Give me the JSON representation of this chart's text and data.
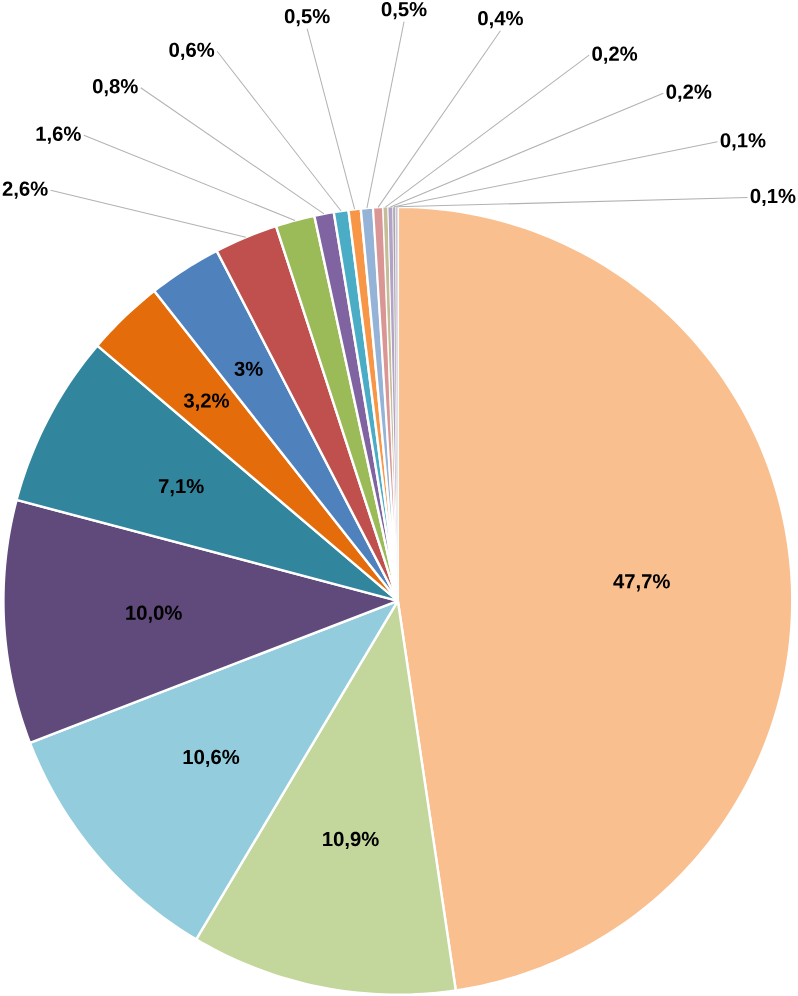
{
  "chart_data": {
    "type": "pie",
    "categories": [
      null,
      null,
      null,
      null,
      null,
      null,
      null,
      null,
      null,
      null,
      null,
      null,
      null,
      null,
      null,
      null,
      null,
      null
    ],
    "values": [
      47.7,
      10.9,
      10.6,
      10.0,
      7.1,
      3.2,
      3,
      2.6,
      1.6,
      0.8,
      0.6,
      0.5,
      0.5,
      0.4,
      0.2,
      0.2,
      0.1,
      0.1
    ],
    "value_labels": [
      "47,7%",
      "10,9%",
      "10,6%",
      "10,0%",
      "7,1%",
      "3,2%",
      "3%",
      "2,6%",
      "1,6%",
      "0,8%",
      "0,6%",
      "0,5%",
      "0,5%",
      "0,4%",
      "0,2%",
      "0,2%",
      "0,1%",
      "0,1%"
    ],
    "colors": [
      "#fabf8f",
      "#c3d69b",
      "#93cddd",
      "#604a7b",
      "#31859c",
      "#e46c0a",
      "#4f81bd",
      "#c0504d",
      "#9bbb59",
      "#8064a2",
      "#4bacc6",
      "#f79646",
      "#95b3d7",
      "#d99694",
      "#c4bd97",
      "#b3a2c7",
      "#a5a5a5",
      "#ccc1da"
    ]
  }
}
